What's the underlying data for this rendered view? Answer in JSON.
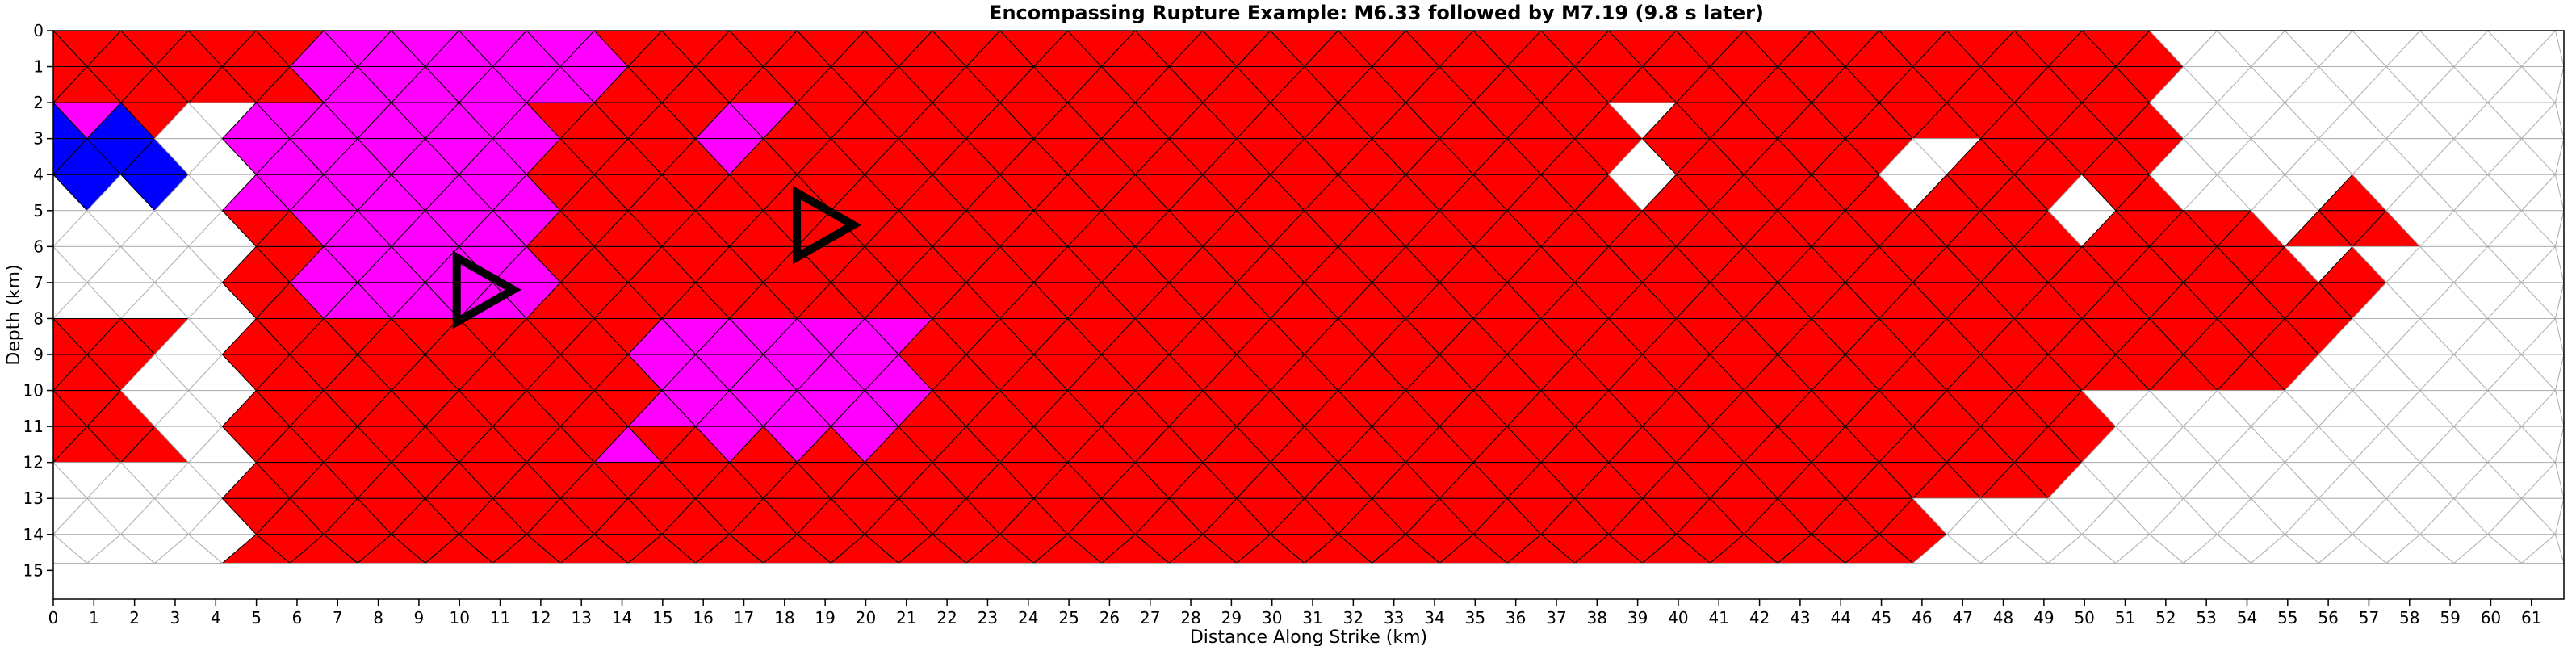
{
  "chart_data": {
    "type": "heatmap",
    "title": "Encompassing Rupture Example: M6.33 followed by M7.19 (9.8 s later)",
    "xlabel": "Distance Along Strike (km)",
    "ylabel": "Depth (km)",
    "xlim": [
      0,
      62
    ],
    "ylim": [
      15.8,
      0
    ],
    "x_ticks": [
      "0",
      "1",
      "2",
      "3",
      "4",
      "5",
      "6",
      "7",
      "8",
      "9",
      "10",
      "11",
      "12",
      "13",
      "14",
      "15",
      "16",
      "17",
      "18",
      "19",
      "20",
      "21",
      "22",
      "23",
      "24",
      "25",
      "26",
      "27",
      "28",
      "29",
      "30",
      "31",
      "32",
      "33",
      "34",
      "35",
      "36",
      "37",
      "38",
      "39",
      "40",
      "41",
      "42",
      "43",
      "44",
      "45",
      "46",
      "47",
      "48",
      "49",
      "50",
      "51",
      "52",
      "53",
      "54",
      "55",
      "56",
      "57",
      "58",
      "59",
      "60",
      "61"
    ],
    "y_ticks": [
      "0",
      "1",
      "2",
      "3",
      "4",
      "5",
      "6",
      "7",
      "8",
      "9",
      "10",
      "11",
      "12",
      "13",
      "14",
      "15"
    ],
    "grid": "triangular fault mesh",
    "colors": {
      "second_event_rupture": "#ff0000",
      "first_event_rupture": "#ff00ff",
      "other_patch": "#0000ff",
      "unruptured": "#ffffff",
      "mesh_edge_ruptured": "#000000",
      "mesh_edge_unruptured": "#b0b0b0",
      "hypocenter_marker": "#000000"
    },
    "hypocenters": [
      {
        "x": 10.6,
        "y": 7.2
      },
      {
        "x": 19.0,
        "y": 5.4
      }
    ]
  }
}
